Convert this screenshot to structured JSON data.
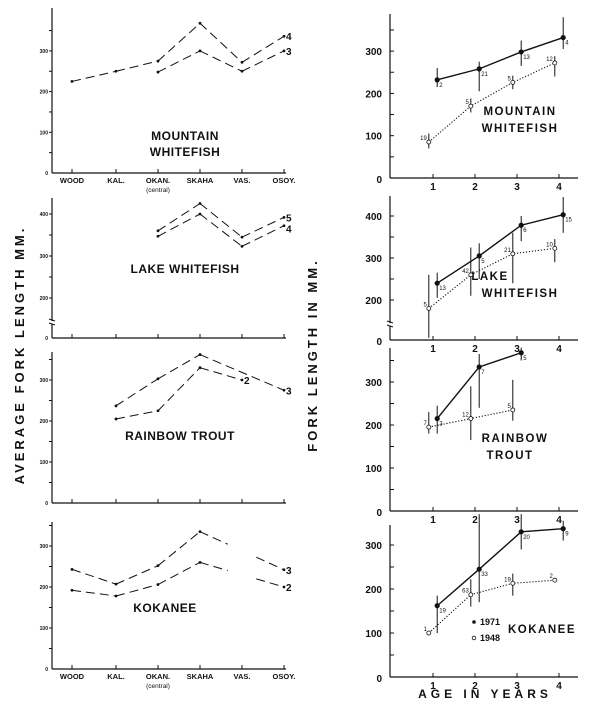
{
  "left_ylabel": "AVERAGE FORK LENGTH MM.",
  "right_ylabel": "FORK LENGTH IN MM.",
  "right_xlabel": "AGE IN YEARS",
  "left_categories": [
    "WOOD",
    "KAL.",
    "OKAN.",
    "SKAHA",
    "VAS.",
    "OSOY."
  ],
  "left_category_sub": {
    "OKAN.": "(central)"
  },
  "legend": [
    {
      "label": "1971",
      "marker": "filled"
    },
    {
      "label": "1948",
      "marker": "open"
    }
  ],
  "chart_data": [
    {
      "type": "line",
      "panel": "left",
      "title": [
        "MOUNTAIN",
        "WHITEFISH"
      ],
      "yticks": [
        0,
        100,
        200,
        300
      ],
      "ylim": [
        0,
        380
      ],
      "line_style": "dashed",
      "series": [
        {
          "name": "4",
          "values": [
            225,
            250,
            275,
            368,
            272,
            336
          ]
        },
        {
          "name": "3",
          "values": [
            null,
            null,
            248,
            300,
            250,
            300
          ]
        }
      ]
    },
    {
      "type": "line",
      "panel": "left",
      "title": [
        "LAKE   WHITEFISH"
      ],
      "yticks": [
        0,
        200,
        300,
        400
      ],
      "ylim": [
        0,
        440
      ],
      "axis_break": true,
      "line_style": "dashed",
      "series": [
        {
          "name": "5",
          "values": [
            null,
            null,
            360,
            425,
            345,
            392
          ]
        },
        {
          "name": "4",
          "values": [
            null,
            null,
            347,
            400,
            323,
            372
          ]
        }
      ]
    },
    {
      "type": "line",
      "panel": "left",
      "title": [
        "RAINBOW   TROUT"
      ],
      "yticks": [
        0,
        100,
        200,
        300
      ],
      "ylim": [
        0,
        380
      ],
      "line_style": "dashed",
      "series": [
        {
          "name": "3",
          "values": [
            null,
            237,
            303,
            362,
            null,
            275
          ]
        },
        {
          "name": "2",
          "values": [
            null,
            205,
            225,
            330,
            300,
            null
          ]
        }
      ]
    },
    {
      "type": "line",
      "panel": "left",
      "title": [
        "KOKANEE"
      ],
      "yticks": [
        0,
        100,
        200,
        300
      ],
      "ylim": [
        0,
        380
      ],
      "line_style": "dashed",
      "gap_at": "VAS.",
      "series": [
        {
          "name": "3",
          "values": [
            243,
            207,
            252,
            335,
            null,
            242
          ]
        },
        {
          "name": "2",
          "values": [
            192,
            178,
            206,
            260,
            null,
            200
          ]
        }
      ]
    },
    {
      "type": "line",
      "panel": "right",
      "title": [
        "MOUNTAIN",
        "WHITEFISH"
      ],
      "xticks": [
        1,
        2,
        3,
        4
      ],
      "yticks": [
        0,
        100,
        200,
        300
      ],
      "ylim": [
        0,
        380
      ],
      "series": [
        {
          "name": "1971",
          "points": [
            {
              "x": 1.1,
              "y": 232,
              "n": "2",
              "lo": 215,
              "hi": 260
            },
            {
              "x": 2.1,
              "y": 258,
              "n": "21",
              "lo": 205,
              "hi": 275
            },
            {
              "x": 3.1,
              "y": 298,
              "n": "13",
              "lo": 265,
              "hi": 325
            },
            {
              "x": 4.1,
              "y": 332,
              "n": "4",
              "lo": 305,
              "hi": 380
            }
          ]
        },
        {
          "name": "1948",
          "points": [
            {
              "x": 0.9,
              "y": 85,
              "n": "19",
              "lo": 70,
              "hi": 105
            },
            {
              "x": 1.9,
              "y": 170,
              "n": "5",
              "lo": 155,
              "hi": 188
            },
            {
              "x": 2.9,
              "y": 226,
              "n": "5",
              "lo": 210,
              "hi": 242
            },
            {
              "x": 3.9,
              "y": 272,
              "n": "12",
              "lo": 240,
              "hi": 288
            }
          ]
        }
      ]
    },
    {
      "type": "line",
      "panel": "right",
      "title": [
        "LAKE",
        "WHITEFISH"
      ],
      "xticks": [
        1,
        2,
        3,
        4
      ],
      "yticks": [
        0,
        200,
        300,
        400
      ],
      "ylim": [
        0,
        450
      ],
      "axis_break": true,
      "series": [
        {
          "name": "1971",
          "points": [
            {
              "x": 1.1,
              "y": 240,
              "n": "13",
              "lo": 205,
              "hi": 265
            },
            {
              "x": 2.1,
              "y": 305,
              "n": "5",
              "lo": 250,
              "hi": 335
            },
            {
              "x": 3.1,
              "y": 378,
              "n": "6",
              "lo": 340,
              "hi": 400
            },
            {
              "x": 4.1,
              "y": 403,
              "n": "15",
              "lo": 360,
              "hi": 445
            }
          ]
        },
        {
          "name": "1948",
          "points": [
            {
              "x": 0.9,
              "y": 180,
              "n": "5",
              "lo": 110,
              "hi": 260
            },
            {
              "x": 1.9,
              "y": 260,
              "n": "42",
              "lo": 210,
              "hi": 325
            },
            {
              "x": 2.9,
              "y": 310,
              "n": "21",
              "lo": 240,
              "hi": 360
            },
            {
              "x": 3.9,
              "y": 323,
              "n": "10",
              "lo": 290,
              "hi": 345
            }
          ]
        }
      ]
    },
    {
      "type": "line",
      "panel": "right",
      "title": [
        "RAINBOW",
        "TROUT"
      ],
      "xticks": [
        1,
        2,
        3,
        4
      ],
      "yticks": [
        0,
        100,
        200,
        300
      ],
      "ylim": [
        0,
        380
      ],
      "series": [
        {
          "name": "1971",
          "points": [
            {
              "x": 1.1,
              "y": 215,
              "n": "3",
              "lo": 180,
              "hi": 245
            },
            {
              "x": 2.1,
              "y": 335,
              "n": "7",
              "lo": 240,
              "hi": 365
            },
            {
              "x": 3.1,
              "y": 368,
              "n": "5",
              "lo": 350,
              "hi": 380
            }
          ]
        },
        {
          "name": "1948",
          "points": [
            {
              "x": 0.9,
              "y": 195,
              "n": "7",
              "lo": 180,
              "hi": 230
            },
            {
              "x": 1.9,
              "y": 215,
              "n": "12",
              "lo": 165,
              "hi": 290
            },
            {
              "x": 2.9,
              "y": 235,
              "n": "5",
              "lo": 210,
              "hi": 305
            }
          ]
        }
      ]
    },
    {
      "type": "line",
      "panel": "right",
      "title": [
        "KOKANEE"
      ],
      "xticks": [
        1,
        2,
        3,
        4
      ],
      "yticks": [
        0,
        100,
        200,
        300
      ],
      "ylim": [
        0,
        350
      ],
      "series": [
        {
          "name": "1971",
          "points": [
            {
              "x": 1.1,
              "y": 162,
              "n": "19",
              "lo": 100,
              "hi": 185
            },
            {
              "x": 2.1,
              "y": 245,
              "n": "33",
              "lo": 170,
              "hi": 370
            },
            {
              "x": 3.1,
              "y": 330,
              "n": "20",
              "lo": 290,
              "hi": 370
            },
            {
              "x": 4.1,
              "y": 337,
              "n": "9",
              "lo": 310,
              "hi": 355
            }
          ]
        },
        {
          "name": "1948",
          "points": [
            {
              "x": 0.9,
              "y": 100,
              "n": "1",
              "lo": null,
              "hi": null
            },
            {
              "x": 1.9,
              "y": 187,
              "n": "63",
              "lo": 160,
              "hi": 222
            },
            {
              "x": 2.9,
              "y": 213,
              "n": "19",
              "lo": 185,
              "hi": 235
            },
            {
              "x": 3.9,
              "y": 220,
              "n": "2",
              "lo": null,
              "hi": null
            }
          ]
        }
      ]
    }
  ]
}
